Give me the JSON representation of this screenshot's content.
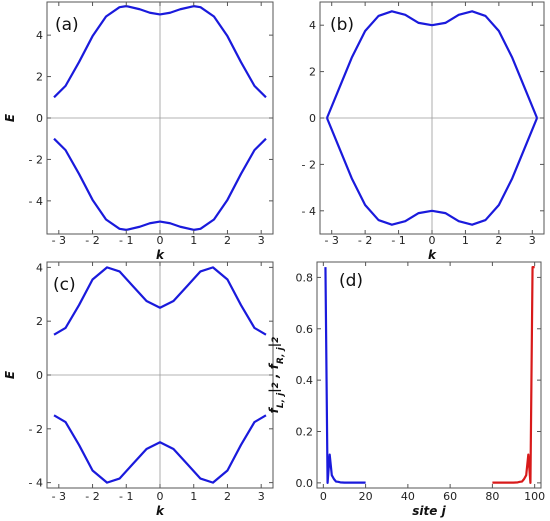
{
  "figure": {
    "background": "#ffffff",
    "frame_color": "#555555",
    "zero_line_color": "#9a9a9a"
  },
  "chart_data": [
    {
      "id": "a",
      "type": "line",
      "panel_label": "(a)",
      "xlabel": "k",
      "ylabel": "E",
      "xlim": [
        -3.35,
        3.35
      ],
      "ylim": [
        -5.6,
        5.6
      ],
      "xticks": [
        -3,
        -2,
        -1,
        0,
        1,
        2,
        3
      ],
      "xtick_labels": [
        "- 3",
        "- 2",
        "- 1",
        "0",
        "1",
        "2",
        "3"
      ],
      "yticks": [
        -4,
        -2,
        0,
        2,
        4
      ],
      "ytick_labels": [
        "- 4",
        "- 2",
        "0",
        "2",
        "4"
      ],
      "zero_lines": true,
      "series": [
        {
          "color": "#1a1adc",
          "x": [
            -3.1416,
            -2.8,
            -2.4,
            -2.0,
            -1.6,
            -1.2,
            -1.0,
            -0.6,
            -0.3,
            0.0,
            0.3,
            0.6,
            1.0,
            1.2,
            1.6,
            2.0,
            2.4,
            2.8,
            3.1416
          ],
          "y": [
            1.0,
            1.55,
            2.7,
            3.95,
            4.9,
            5.35,
            5.4,
            5.25,
            5.08,
            5.0,
            5.08,
            5.25,
            5.4,
            5.35,
            4.9,
            3.95,
            2.7,
            1.55,
            1.0
          ]
        },
        {
          "color": "#1a1adc",
          "x": [
            -3.1416,
            -2.8,
            -2.4,
            -2.0,
            -1.6,
            -1.2,
            -1.0,
            -0.6,
            -0.3,
            0.0,
            0.3,
            0.6,
            1.0,
            1.2,
            1.6,
            2.0,
            2.4,
            2.8,
            3.1416
          ],
          "y": [
            -1.0,
            -1.55,
            -2.7,
            -3.95,
            -4.9,
            -5.35,
            -5.4,
            -5.25,
            -5.08,
            -5.0,
            -5.08,
            -5.25,
            -5.4,
            -5.35,
            -4.9,
            -3.95,
            -2.7,
            -1.55,
            -1.0
          ]
        }
      ]
    },
    {
      "id": "b",
      "type": "line",
      "panel_label": "(b)",
      "xlabel": "k",
      "ylabel": "",
      "xlim": [
        -3.35,
        3.35
      ],
      "ylim": [
        -5.0,
        5.0
      ],
      "xticks": [
        -3,
        -2,
        -1,
        0,
        1,
        2,
        3
      ],
      "xtick_labels": [
        "- 3",
        "- 2",
        "- 1",
        "0",
        "1",
        "2",
        "3"
      ],
      "yticks": [
        -4,
        -2,
        0,
        2,
        4
      ],
      "ytick_labels": [
        "- 4",
        "- 2",
        "0",
        "2",
        "4"
      ],
      "zero_lines": true,
      "series": [
        {
          "color": "#1a1adc",
          "x": [
            -3.1416,
            -2.8,
            -2.4,
            -2.0,
            -1.6,
            -1.2,
            -0.8,
            -0.4,
            0.0,
            0.4,
            0.8,
            1.2,
            1.6,
            2.0,
            2.4,
            2.8,
            3.1416
          ],
          "y": [
            0.0,
            1.2,
            2.6,
            3.75,
            4.4,
            4.6,
            4.45,
            4.1,
            4.0,
            4.1,
            4.45,
            4.6,
            4.4,
            3.75,
            2.6,
            1.2,
            0.0
          ]
        },
        {
          "color": "#1a1adc",
          "x": [
            -3.1416,
            -2.8,
            -2.4,
            -2.0,
            -1.6,
            -1.2,
            -0.8,
            -0.4,
            0.0,
            0.4,
            0.8,
            1.2,
            1.6,
            2.0,
            2.4,
            2.8,
            3.1416
          ],
          "y": [
            0.0,
            -1.2,
            -2.6,
            -3.75,
            -4.4,
            -4.6,
            -4.45,
            -4.1,
            -4.0,
            -4.1,
            -4.45,
            -4.6,
            -4.4,
            -3.75,
            -2.6,
            -1.2,
            0.0
          ]
        }
      ]
    },
    {
      "id": "c",
      "type": "line",
      "panel_label": "(c)",
      "xlabel": "k",
      "ylabel": "E",
      "xlim": [
        -3.35,
        3.35
      ],
      "ylim": [
        -4.2,
        4.2
      ],
      "xticks": [
        -3,
        -2,
        -1,
        0,
        1,
        2,
        3
      ],
      "xtick_labels": [
        "- 3",
        "- 2",
        "- 1",
        "0",
        "1",
        "2",
        "3"
      ],
      "yticks": [
        -4,
        -2,
        0,
        2,
        4
      ],
      "ytick_labels": [
        "- 4",
        "- 2",
        "0",
        "2",
        "4"
      ],
      "zero_lines": true,
      "series": [
        {
          "color": "#1a1adc",
          "x": [
            -3.1416,
            -2.8,
            -2.4,
            -2.0,
            -1.57,
            -1.2,
            -0.8,
            -0.4,
            0.0,
            0.4,
            0.8,
            1.2,
            1.57,
            2.0,
            2.4,
            2.8,
            3.1416
          ],
          "y": [
            1.5,
            1.75,
            2.6,
            3.55,
            4.0,
            3.85,
            3.3,
            2.75,
            2.5,
            2.75,
            3.3,
            3.85,
            4.0,
            3.55,
            2.6,
            1.75,
            1.5
          ]
        },
        {
          "color": "#1a1adc",
          "x": [
            -3.1416,
            -2.8,
            -2.4,
            -2.0,
            -1.57,
            -1.2,
            -0.8,
            -0.4,
            0.0,
            0.4,
            0.8,
            1.2,
            1.57,
            2.0,
            2.4,
            2.8,
            3.1416
          ],
          "y": [
            -1.5,
            -1.75,
            -2.6,
            -3.55,
            -4.0,
            -3.85,
            -3.3,
            -2.75,
            -2.5,
            -2.75,
            -3.3,
            -3.85,
            -4.0,
            -3.55,
            -2.6,
            -1.75,
            -1.5
          ]
        }
      ]
    },
    {
      "id": "d",
      "type": "line",
      "panel_label": "(d)",
      "xlabel": "site j",
      "ylabel": "f",
      "xlim": [
        -3,
        103
      ],
      "ylim": [
        -0.02,
        0.86
      ],
      "xticks": [
        0,
        20,
        40,
        60,
        80,
        100
      ],
      "xtick_labels": [
        "0",
        "20",
        "40",
        "60",
        "80",
        "100"
      ],
      "yticks": [
        0.0,
        0.2,
        0.4,
        0.6,
        0.8
      ],
      "ytick_labels": [
        "0.0",
        "0.2",
        "0.4",
        "0.6",
        "0.8"
      ],
      "zero_lines": false,
      "series": [
        {
          "color": "#1a1adc",
          "x": [
            1,
            2,
            3,
            4,
            5,
            6,
            7,
            8,
            10,
            12,
            14,
            16,
            18,
            20
          ],
          "y": [
            0.84,
            0.0,
            0.11,
            0.03,
            0.015,
            0.005,
            0.004,
            0.002,
            0.001,
            0.001,
            0.001,
            0.001,
            0.001,
            0.001
          ]
        },
        {
          "color": "#d81a1a",
          "x": [
            80,
            82,
            84,
            86,
            88,
            90,
            92,
            93,
            94,
            95,
            96,
            97,
            98,
            99,
            100
          ],
          "y": [
            0.001,
            0.001,
            0.001,
            0.001,
            0.001,
            0.001,
            0.002,
            0.004,
            0.005,
            0.015,
            0.03,
            0.11,
            0.0,
            0.84,
            0.84
          ]
        }
      ]
    }
  ]
}
